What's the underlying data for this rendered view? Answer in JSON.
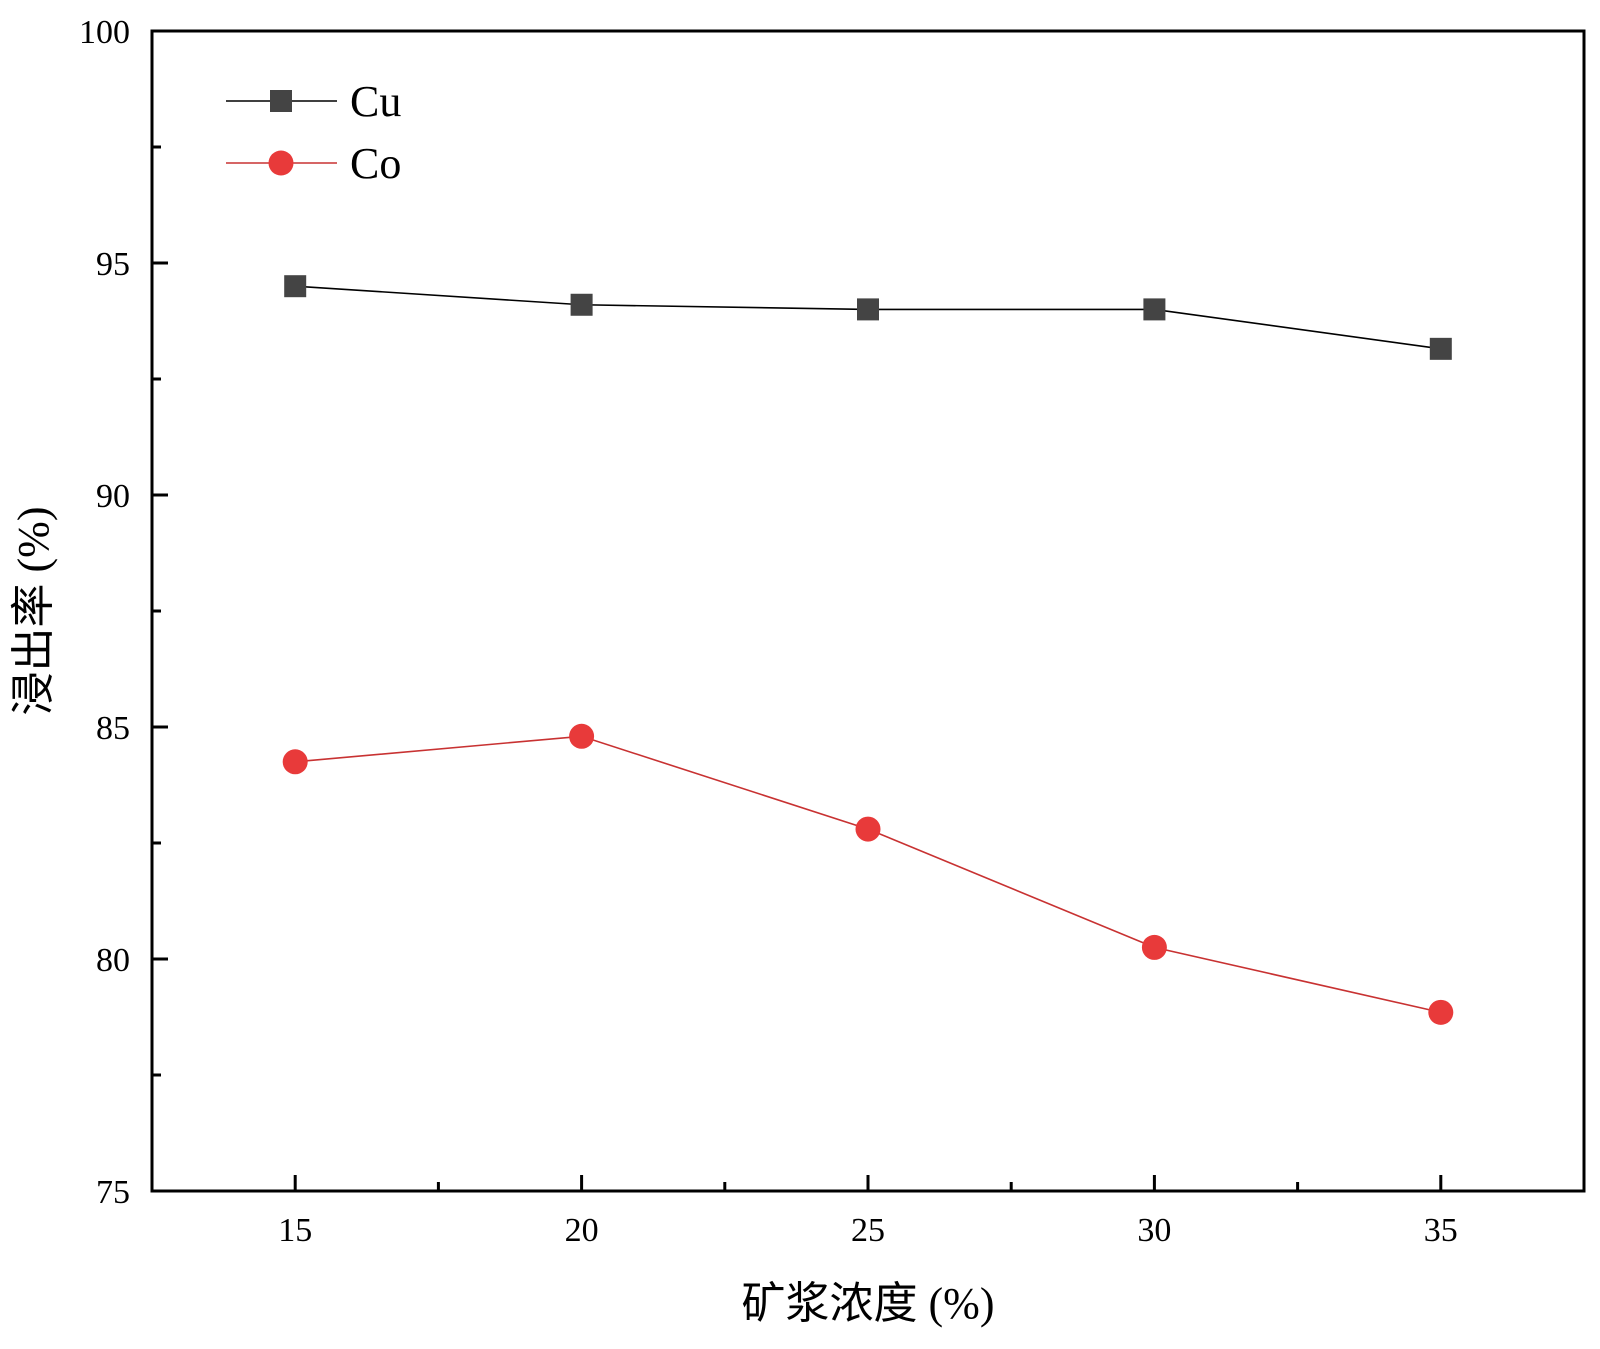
{
  "chart_data": {
    "type": "line",
    "x": [
      15,
      20,
      25,
      30,
      35
    ],
    "series": [
      {
        "name": "Cu",
        "values": [
          94.5,
          94.1,
          94.0,
          94.0,
          93.15
        ],
        "color": "#444444",
        "line_color": "#000000",
        "marker": "square"
      },
      {
        "name": "Co",
        "values": [
          84.25,
          84.8,
          82.8,
          80.25,
          78.85
        ],
        "color": "#e83a3a",
        "line_color": "#c83232",
        "marker": "circle"
      }
    ],
    "xlabel": "矿浆浓度 (%)",
    "ylabel": "浸出率 (%)",
    "xlim": [
      12.5,
      37.5
    ],
    "ylim": [
      75,
      100
    ],
    "x_ticks": [
      15,
      20,
      25,
      30,
      35
    ],
    "x_tick_labels": [
      "15",
      "20",
      "25",
      "30",
      "35"
    ],
    "y_ticks": [
      75,
      80,
      85,
      90,
      95,
      100
    ],
    "y_tick_labels": [
      "75",
      "80",
      "85",
      "90",
      "95",
      "100"
    ],
    "x_minor_ticks": [
      17.5,
      22.5,
      27.5,
      32.5
    ],
    "y_minor_ticks": [
      77.5,
      82.5,
      87.5,
      92.5,
      97.5
    ],
    "grid": false,
    "legend_position": "top-left"
  }
}
